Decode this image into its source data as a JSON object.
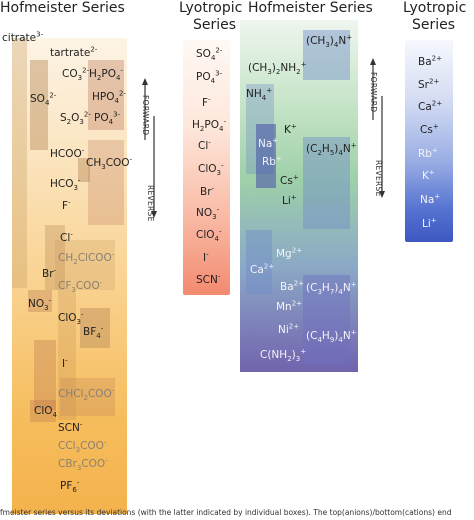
{
  "titles": {
    "anion_hofmeister": "Hofmeister Series",
    "anion_lyotropic_1": "Lyotropic",
    "anion_lyotropic_2": "Series",
    "cation_hofmeister": "Hofmeister Series",
    "cation_lyotropic_1": "Lyotropic",
    "cation_lyotropic_2": "Series"
  },
  "arrows": {
    "forward": "FORWARD",
    "reverse": "REVERSE"
  },
  "anion_hofmeister": [
    {
      "base": "citrate",
      "sup": "3-",
      "sub": "",
      "tone": "dark"
    },
    {
      "base": "tartrate",
      "sup": "2-",
      "sub": "",
      "tone": "dark"
    },
    {
      "base": "CO",
      "sub": "3",
      "sup": "2-",
      "tone": "dark"
    },
    {
      "base": "H",
      "sub": "2",
      "mid": "PO",
      "sub2": "4",
      "sup": "-",
      "tone": "dark"
    },
    {
      "base": "SO",
      "sub": "4",
      "sup": "2-",
      "tone": "dark"
    },
    {
      "base": "HPO",
      "sub": "4",
      "sup": "2-",
      "tone": "dark"
    },
    {
      "base": "S",
      "sub": "2",
      "mid": "O",
      "sub2": "3",
      "sup": "2-",
      "tone": "dark"
    },
    {
      "base": "PO",
      "sub": "4",
      "sup": "3-",
      "tone": "dark"
    },
    {
      "base": "HCOO",
      "sup": "-",
      "sub": "",
      "tone": "dark"
    },
    {
      "base": "CH",
      "sub": "3",
      "mid": "COO",
      "sup": "-",
      "tone": "dark"
    },
    {
      "base": "HCO",
      "sub": "3",
      "sup": "-",
      "tone": "dark"
    },
    {
      "base": "F",
      "sup": "-",
      "sub": "",
      "tone": "dark"
    },
    {
      "base": "Cl",
      "sup": "-",
      "sub": "",
      "tone": "dark"
    },
    {
      "base": "CH",
      "sub": "2",
      "mid": "ClCOO",
      "sup": "-",
      "tone": "grey"
    },
    {
      "base": "Br",
      "sup": "-",
      "sub": "",
      "tone": "dark"
    },
    {
      "base": "CF",
      "sub": "3",
      "mid": "COO",
      "sup": "-",
      "tone": "grey"
    },
    {
      "base": "NO",
      "sub": "3",
      "sup": "-",
      "tone": "dark"
    },
    {
      "base": "ClO",
      "sub": "3",
      "sup": "-",
      "tone": "dark"
    },
    {
      "base": "BF",
      "sub": "4",
      "sup": "-",
      "tone": "dark"
    },
    {
      "base": "I",
      "sup": "-",
      "sub": "",
      "tone": "dark"
    },
    {
      "base": "CHCl",
      "sub": "2",
      "mid": "COO",
      "sup": "-",
      "tone": "grey"
    },
    {
      "base": "ClO",
      "sub": "4",
      "sup": "",
      "tone": "dark"
    },
    {
      "base": "SCN",
      "sup": "-",
      "sub": "",
      "tone": "dark"
    },
    {
      "base": "CCl",
      "sub": "3",
      "mid": "COO",
      "sup": "-",
      "tone": "grey"
    },
    {
      "base": "CBr",
      "sub": "3",
      "mid": "COO",
      "sup": "-",
      "tone": "grey"
    },
    {
      "base": "PF",
      "sub": "6",
      "sup": "-",
      "tone": "dark"
    }
  ],
  "anion_lyotropic": [
    {
      "base": "SO",
      "sub": "4",
      "sup": "2-"
    },
    {
      "base": "PO",
      "sub": "4",
      "sup": "3-"
    },
    {
      "base": "F",
      "sup": "-",
      "sub": ""
    },
    {
      "base": "H",
      "sub": "2",
      "mid": "PO",
      "sub2": "4",
      "sup": "-"
    },
    {
      "base": "Cl",
      "sup": "-",
      "sub": ""
    },
    {
      "base": "ClO",
      "sub": "3",
      "sup": "-"
    },
    {
      "base": "Br",
      "sup": "-",
      "sub": ""
    },
    {
      "base": "NO",
      "sub": "3",
      "sup": "-"
    },
    {
      "base": "ClO",
      "sub": "4",
      "sup": "-"
    },
    {
      "base": "I",
      "sup": "-",
      "sub": ""
    },
    {
      "base": "SCN",
      "sup": "-",
      "sub": ""
    }
  ],
  "cation_hofmeister": [
    {
      "base": "(CH",
      "sub": "3",
      "mid": ")",
      "sub2": "4",
      "mid2": "N",
      "sup": "+"
    },
    {
      "base": "(CH",
      "sub": "3",
      "mid": ")",
      "sub2": "2",
      "mid2": "NH",
      "sub3": "2",
      "sup": "+"
    },
    {
      "base": "NH",
      "sub": "4",
      "sup": "+"
    },
    {
      "base": "K",
      "sup": "+",
      "sub": ""
    },
    {
      "base": "Na",
      "sup": "+",
      "sub": ""
    },
    {
      "base": "(C",
      "sub": "2",
      "mid": "H",
      "sub2": "5",
      "mid2": ")",
      "sub3": "4",
      "mid3": "N",
      "sup": "+"
    },
    {
      "base": "Rb",
      "sup": "+",
      "sub": ""
    },
    {
      "base": "Cs",
      "sup": "+",
      "sub": ""
    },
    {
      "base": "Li",
      "sup": "+",
      "sub": ""
    },
    {
      "base": "Mg",
      "sup": "2+",
      "sub": ""
    },
    {
      "base": "Ca",
      "sup": "2+",
      "sub": ""
    },
    {
      "base": "Ba",
      "sup": "2+",
      "sub": ""
    },
    {
      "base": "(C",
      "sub": "3",
      "mid": "H",
      "sub2": "7",
      "mid2": ")",
      "sub3": "4",
      "mid3": "N",
      "sup": "+"
    },
    {
      "base": "Mn",
      "sup": "2+",
      "sub": ""
    },
    {
      "base": "Ni",
      "sup": "2+",
      "sub": ""
    },
    {
      "base": "(C",
      "sub": "4",
      "mid": "H",
      "sub2": "9",
      "mid2": ")",
      "sub3": "4",
      "mid3": "N",
      "sup": "+"
    },
    {
      "base": "C(NH",
      "sub": "2",
      "mid": ")",
      "sub2": "3",
      "sup": "+"
    }
  ],
  "cation_lyotropic": [
    {
      "base": "Ba",
      "sup": "2+"
    },
    {
      "base": "Sr",
      "sup": "2+"
    },
    {
      "base": "Ca",
      "sup": "2+"
    },
    {
      "base": "Cs",
      "sup": "+"
    },
    {
      "base": "Rb",
      "sup": "+"
    },
    {
      "base": "K",
      "sup": "+"
    },
    {
      "base": "Na",
      "sup": "+"
    },
    {
      "base": "Li",
      "sup": "+"
    }
  ],
  "caption": "fmeister series versus its deviations (with the latter indicated by individual boxes). The top(anions)/bottom(cations) end"
}
